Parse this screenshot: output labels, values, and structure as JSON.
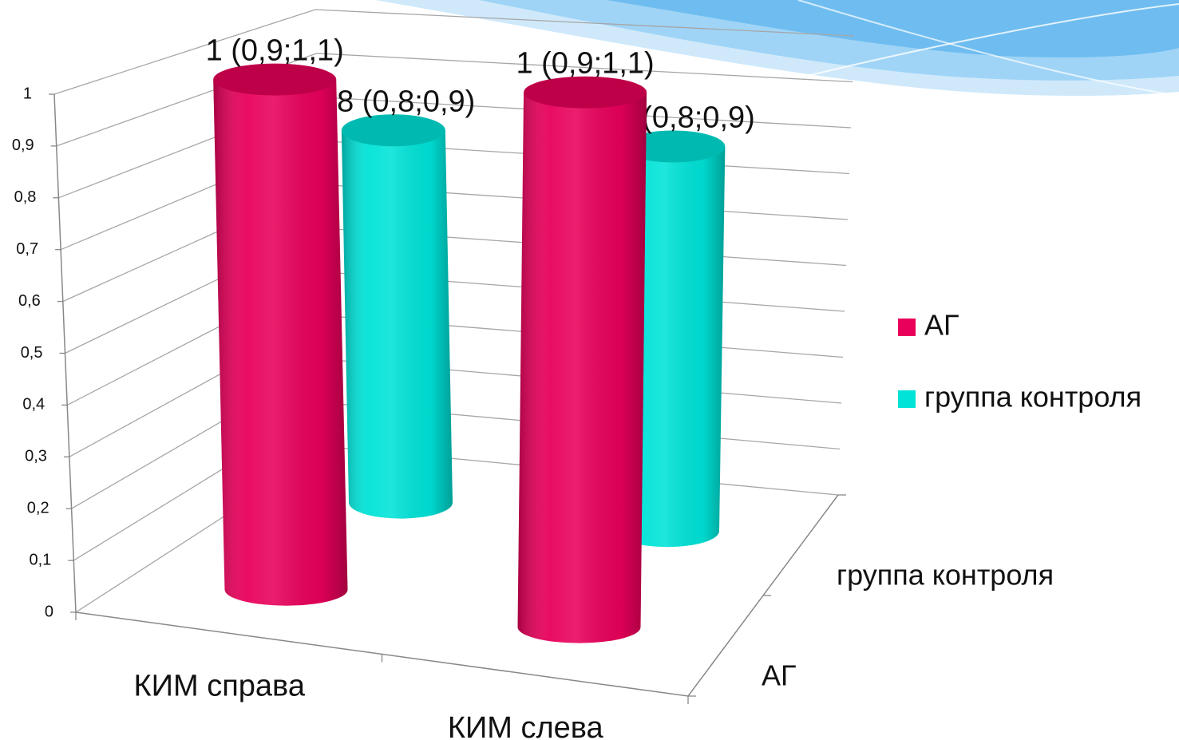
{
  "chart_data": {
    "type": "bar3d",
    "categories": [
      "КИМ справа",
      "КИМ слева"
    ],
    "series": [
      {
        "name": "АГ",
        "color": "#e8005a",
        "values": [
          1,
          1
        ],
        "value_labels": [
          "1 (0,9;1,1)",
          "1 (0,9;1,1)"
        ]
      },
      {
        "name": "группа контроля",
        "color": "#00e3d8",
        "values": [
          0.8,
          0.8
        ],
        "value_labels": [
          "0,8 (0,8;0,9)",
          "0,8 (0,8;0,9)"
        ]
      }
    ],
    "ylim": [
      0,
      1
    ],
    "yticks": [
      0,
      {
        "value": 0.1,
        "label": "0,1"
      },
      {
        "value": 0.2,
        "label": "0,2"
      },
      {
        "value": 0.3,
        "label": "0,3"
      },
      {
        "value": 0.4,
        "label": "0,4"
      },
      {
        "value": 0.5,
        "label": "0,5"
      },
      {
        "value": 0.6,
        "label": "0,6"
      },
      {
        "value": 0.7,
        "label": "0,7"
      },
      {
        "value": 0.8,
        "label": "0,8"
      },
      {
        "value": 0.9,
        "label": "0,9"
      },
      1
    ],
    "grid": true,
    "legend": "right"
  }
}
